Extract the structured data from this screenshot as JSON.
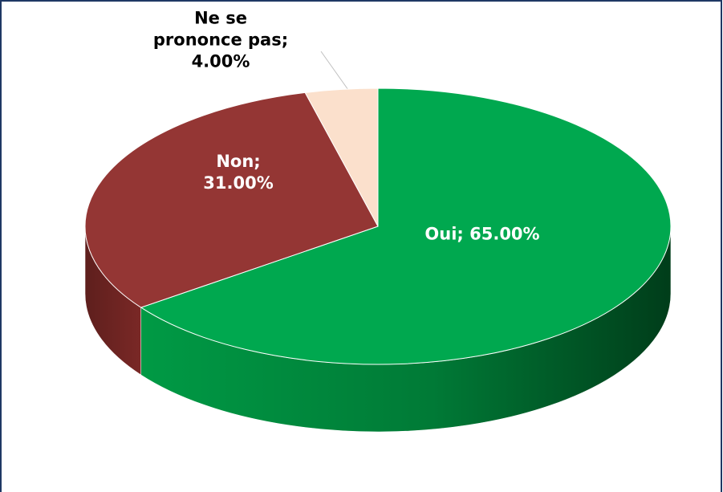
{
  "chart_data": {
    "type": "pie3d",
    "values": [
      65,
      31,
      4
    ],
    "value_labels": [
      "Oui; 65.00%",
      "Non; 31.00%",
      "Ne se prononce pas; 4.00%"
    ],
    "colors": [
      "#00a84f",
      "#943634",
      "#fbe0cc"
    ],
    "label_colors": [
      "#ffffff",
      "#ffffff",
      "#000000"
    ],
    "start_angle": -90
  }
}
